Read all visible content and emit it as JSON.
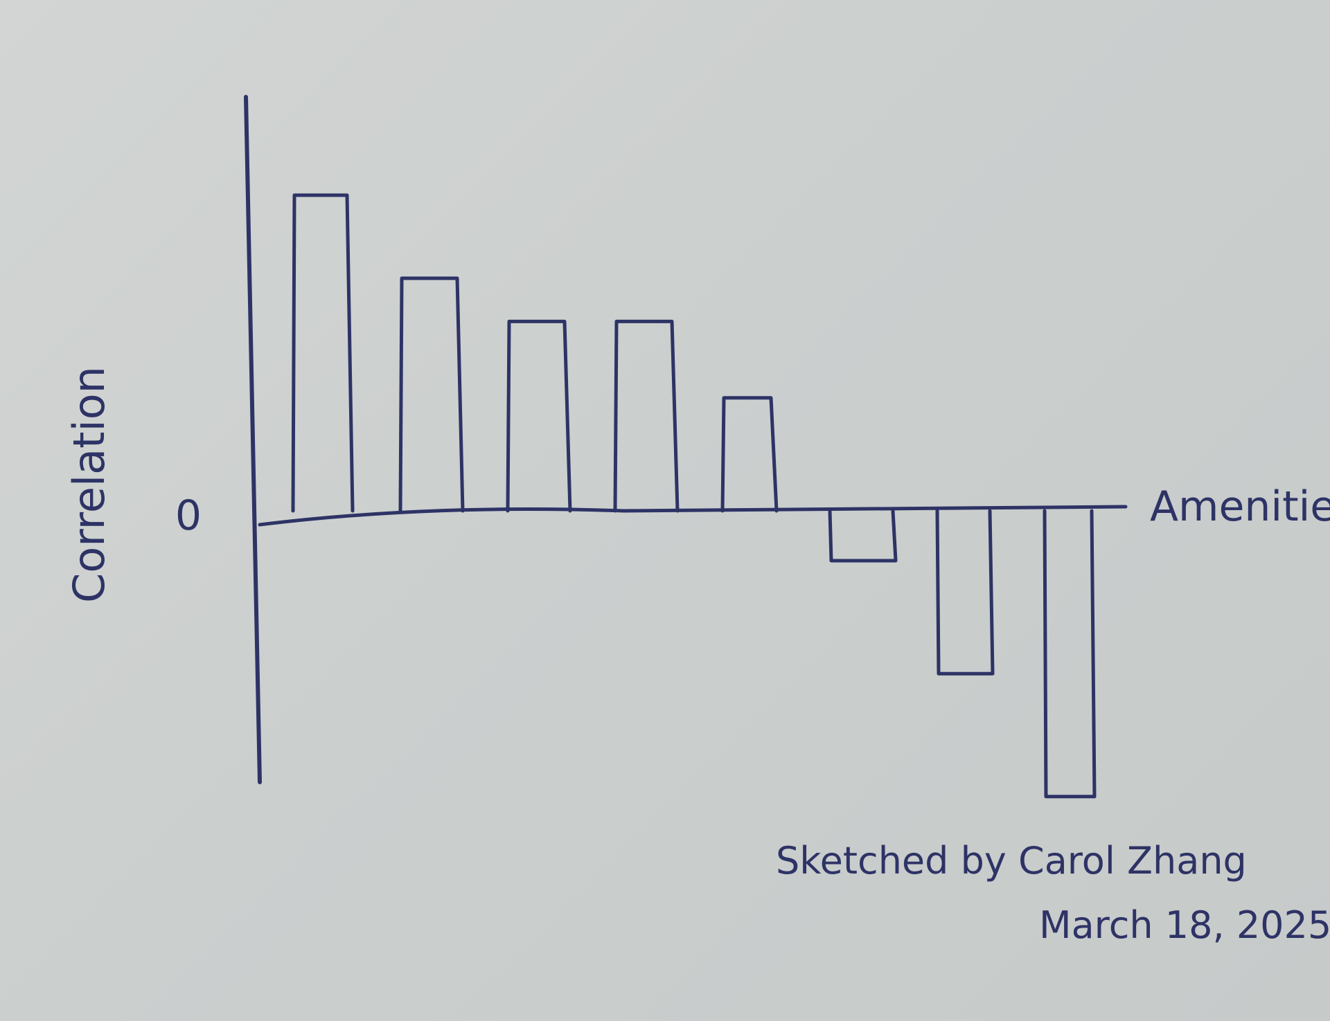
{
  "chart_data": {
    "type": "bar",
    "title": "",
    "xlabel": "Amenities",
    "ylabel": "Correlation",
    "yticks": [
      "0"
    ],
    "categories": [
      "",
      "",
      "",
      "",
      "",
      "",
      "",
      ""
    ],
    "values": [
      0.95,
      0.7,
      0.57,
      0.57,
      0.34,
      -0.15,
      -0.49,
      -0.86
    ],
    "ylim": [
      -1.0,
      1.2
    ],
    "grid": false,
    "legend": "none",
    "ink_color": "#2e3366"
  },
  "annotation": {
    "author_line": "Sketched by Carol Zhang",
    "date_line": "March 18, 2025"
  }
}
